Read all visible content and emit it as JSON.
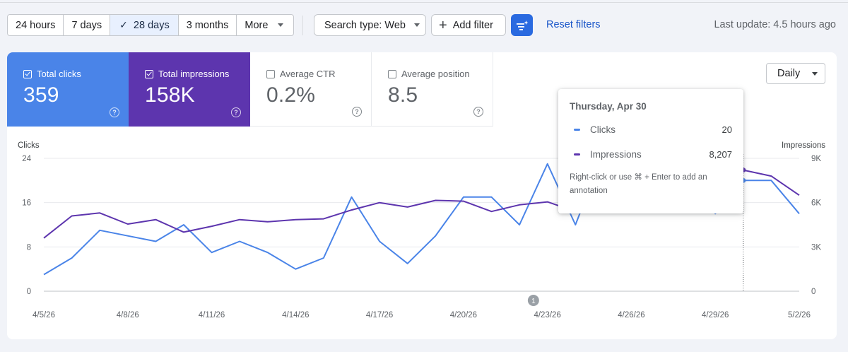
{
  "date_range": {
    "options": [
      "24 hours",
      "7 days",
      "28 days",
      "3 months",
      "More"
    ],
    "selected": "28 days"
  },
  "filters": {
    "search_type": "Search type: Web",
    "add_filter": "Add filter",
    "reset": "Reset filters",
    "last_update": "Last update: 4.5 hours ago"
  },
  "metrics": [
    {
      "label": "Total clicks",
      "value": "359",
      "checked": true
    },
    {
      "label": "Total impressions",
      "value": "158K",
      "checked": true
    },
    {
      "label": "Average CTR",
      "value": "0.2%",
      "checked": false
    },
    {
      "label": "Average position",
      "value": "8.5",
      "checked": false
    }
  ],
  "granularity": "Daily",
  "tooltip": {
    "date": "Thursday, Apr 30",
    "rows": [
      {
        "name": "Clicks",
        "value": "20"
      },
      {
        "name": "Impressions",
        "value": "8,207"
      }
    ],
    "note": "Right-click or use ⌘ + Enter to add an annotation"
  },
  "colors": {
    "clicks": "#4a84e8",
    "impressions": "#5d35ae",
    "accent": "#2a6ae0"
  },
  "chart_data": {
    "type": "line",
    "ylabel_left": "Clicks",
    "ylabel_right": "Impressions",
    "y_left_ticks": [
      "0",
      "8",
      "16",
      "24"
    ],
    "y_right_ticks": [
      "0",
      "3K",
      "6K",
      "9K"
    ],
    "ylim_left": [
      0,
      24
    ],
    "ylim_right": [
      0,
      9000
    ],
    "x_tick_labels": [
      "4/5/26",
      "4/8/26",
      "4/11/26",
      "4/14/26",
      "4/17/26",
      "4/20/26",
      "4/23/26",
      "4/26/26",
      "4/29/26",
      "5/2/26"
    ],
    "x": [
      "4/5",
      "4/6",
      "4/7",
      "4/8",
      "4/9",
      "4/10",
      "4/11",
      "4/12",
      "4/13",
      "4/14",
      "4/15",
      "4/16",
      "4/17",
      "4/18",
      "4/19",
      "4/20",
      "4/21",
      "4/22",
      "4/23",
      "4/24",
      "4/25",
      "4/26",
      "4/27",
      "4/28",
      "4/29",
      "4/30",
      "5/1",
      "5/2"
    ],
    "series": [
      {
        "name": "Clicks",
        "axis": "left",
        "values": [
          3,
          6,
          11,
          10,
          9,
          12,
          7,
          9,
          7,
          4,
          6,
          17,
          9,
          5,
          10,
          17,
          17,
          12,
          23,
          12,
          25,
          18,
          21,
          22,
          14,
          20,
          20,
          14
        ]
      },
      {
        "name": "Impressions",
        "axis": "right",
        "values": [
          3600,
          5100,
          5300,
          4550,
          4850,
          4000,
          4400,
          4850,
          4700,
          4850,
          4900,
          5500,
          6000,
          5700,
          6150,
          6100,
          5400,
          5850,
          6050,
          5400,
          6050,
          6500,
          6000,
          6400,
          6450,
          8207,
          7800,
          6500
        ]
      }
    ],
    "highlight_index": 25,
    "annotation_marker": "1",
    "grid": true,
    "legend": "none"
  }
}
